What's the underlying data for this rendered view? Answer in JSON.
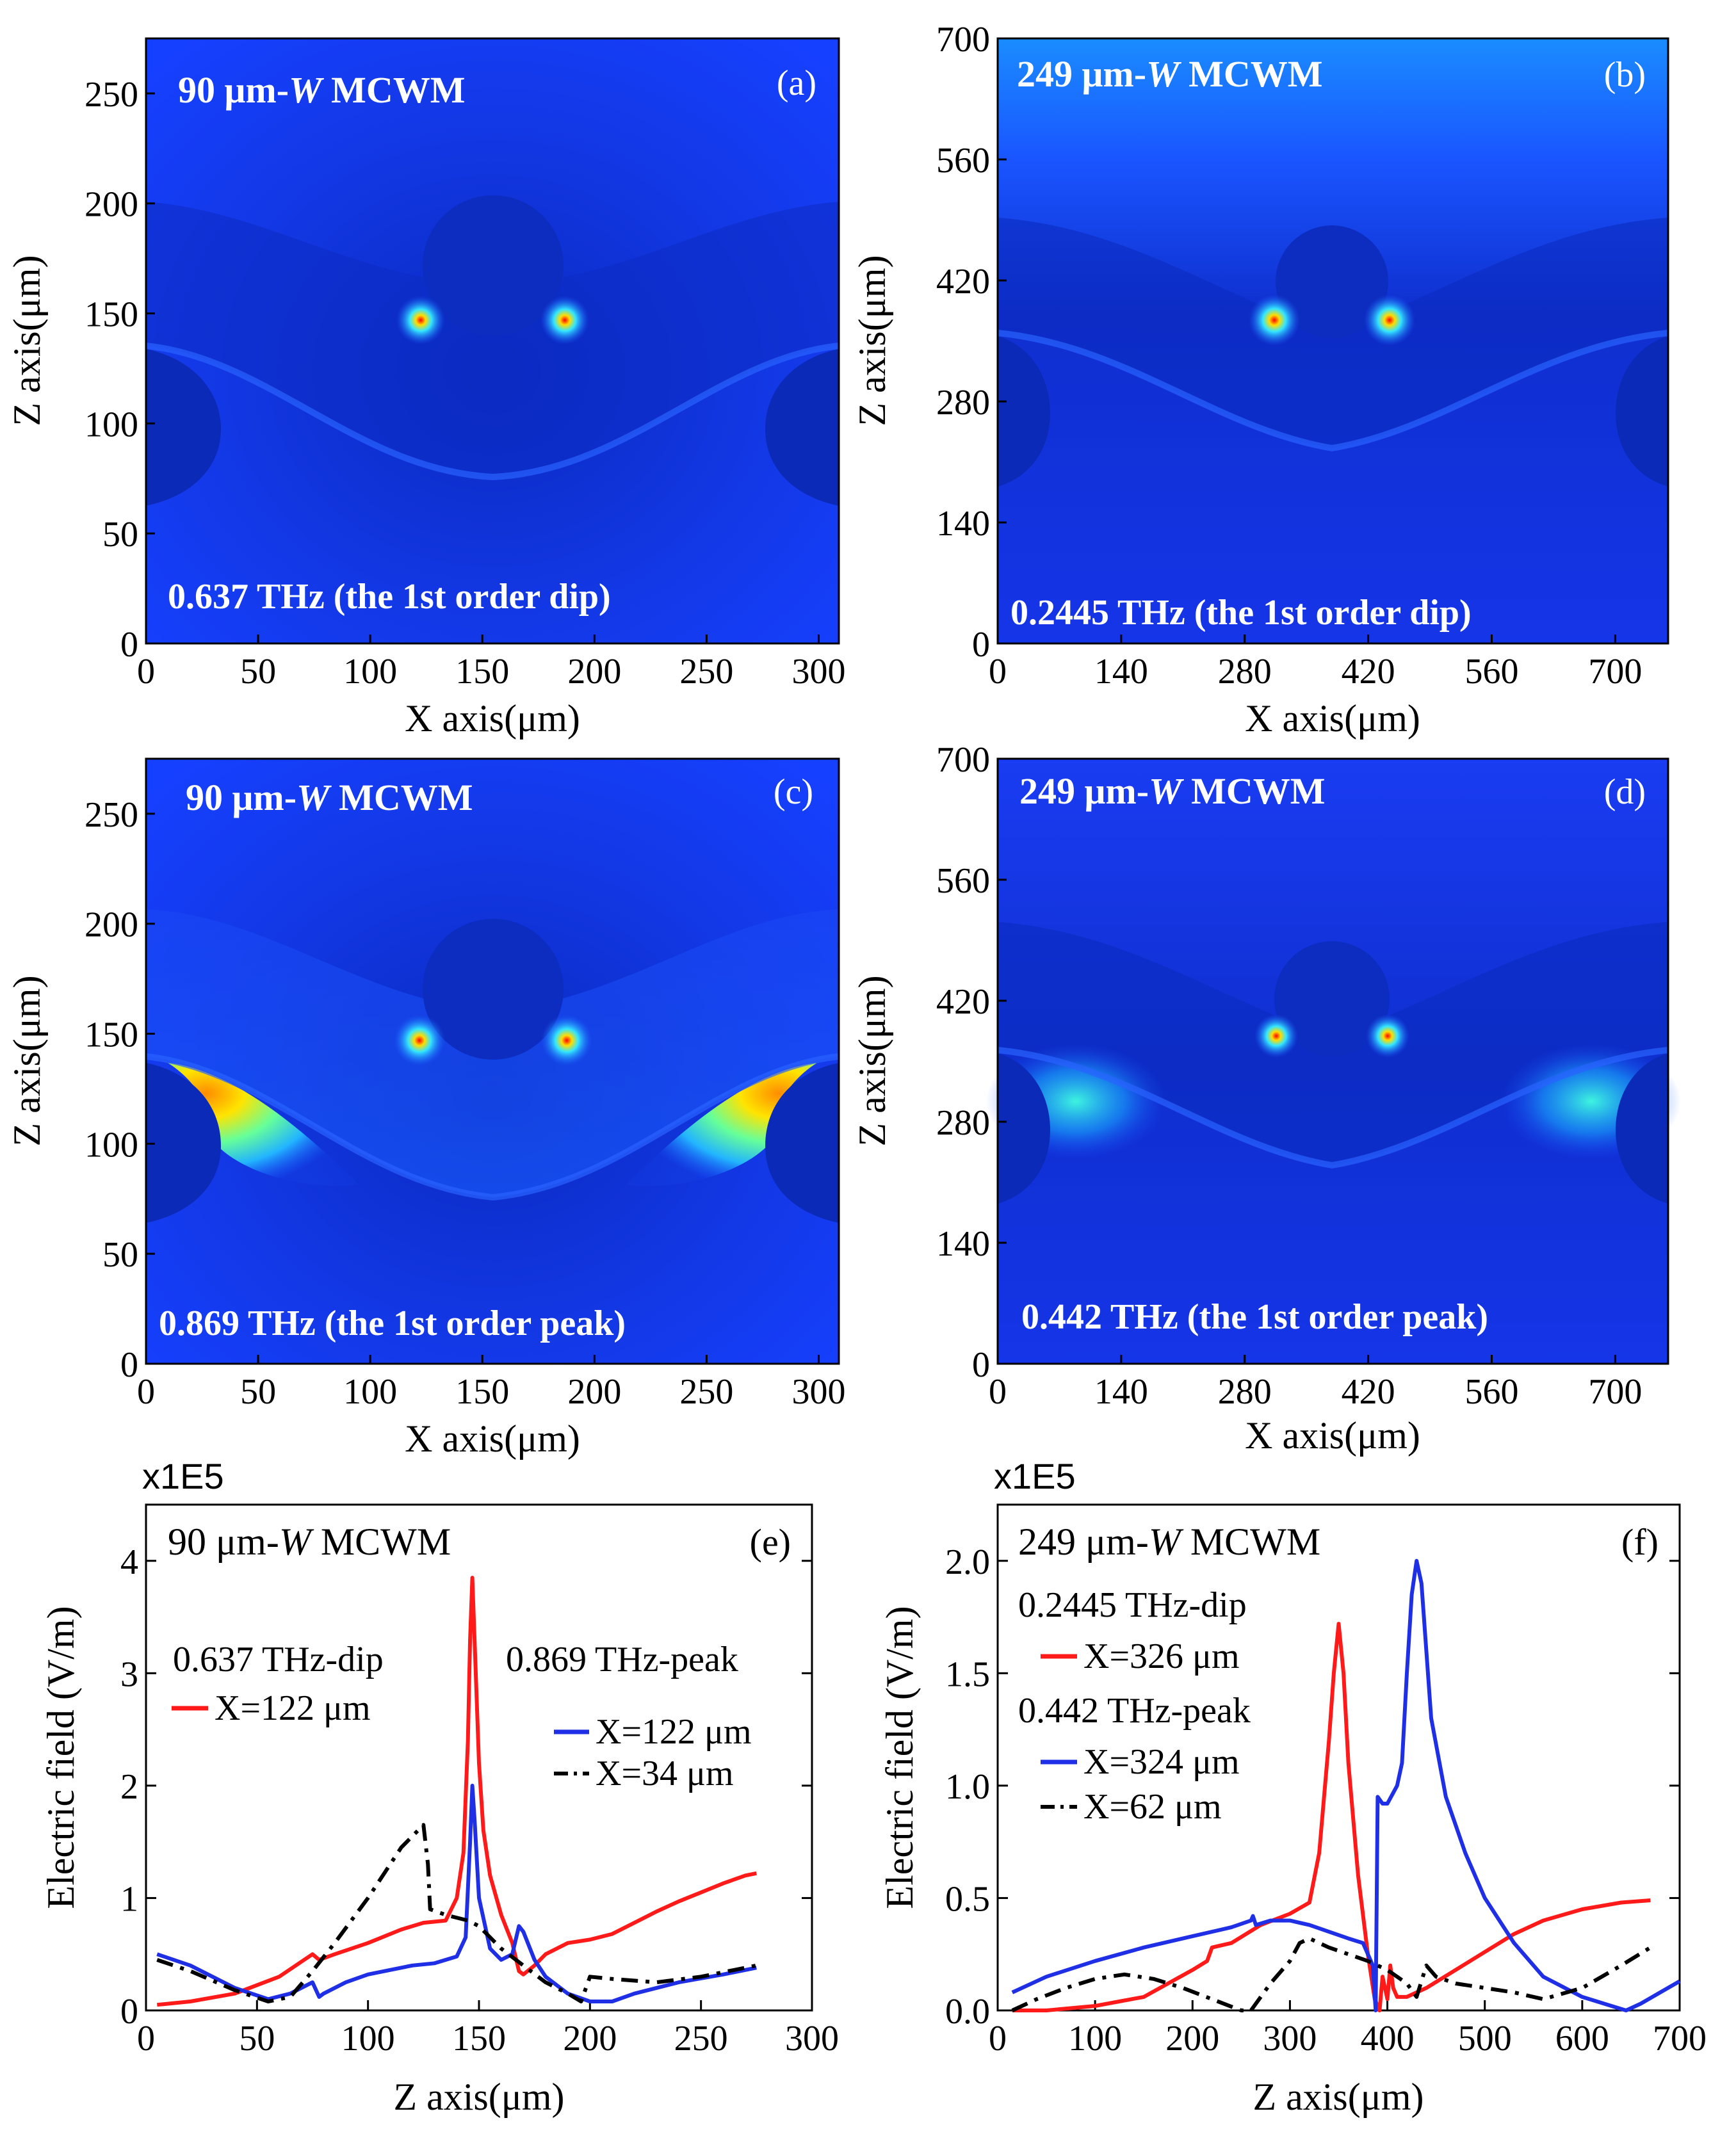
{
  "figure": {
    "multiplier_label": "x1E5",
    "colors": {
      "red": "#ff1a1a",
      "blue": "#1f2fe6",
      "black": "#000000",
      "field_dark": "#0f2fc9",
      "field_bright": "#1640ff"
    }
  },
  "panels": {
    "a": {
      "letter": "(a)",
      "model_prefix": "90 μm-",
      "model_w": "W",
      "model_suffix": " MCWM",
      "freq_label": "0.637 THz (the 1st order dip)",
      "xlabel": "X axis(μm)",
      "ylabel": "Z axis(μm)",
      "xticks": [
        "0",
        "50",
        "100",
        "150",
        "200",
        "250",
        "300"
      ],
      "yticks": [
        "0",
        "50",
        "100",
        "150",
        "200",
        "250"
      ],
      "xrange": [
        0,
        309
      ],
      "yrange": [
        0,
        275
      ]
    },
    "b": {
      "letter": "(b)",
      "model_prefix": "249 μm-",
      "model_w": "W",
      "model_suffix": " MCWM",
      "freq_label": "0.2445 THz (the 1st order dip)",
      "xlabel": "X axis(μm)",
      "ylabel": "Z axis(μm)",
      "xticks": [
        "0",
        "140",
        "280",
        "420",
        "560",
        "700"
      ],
      "yticks": [
        "0",
        "140",
        "280",
        "420",
        "560",
        "700"
      ],
      "xrange": [
        0,
        760
      ],
      "yrange": [
        0,
        700
      ]
    },
    "c": {
      "letter": "(c)",
      "model_prefix": "90 μm-",
      "model_w": "W",
      "model_suffix": " MCWM",
      "freq_label": "0.869 THz (the 1st order peak)",
      "xlabel": "X axis(μm)",
      "ylabel": "Z axis(μm)",
      "xticks": [
        "0",
        "50",
        "100",
        "150",
        "200",
        "250",
        "300"
      ],
      "yticks": [
        "0",
        "50",
        "100",
        "150",
        "200",
        "250"
      ],
      "xrange": [
        0,
        309
      ],
      "yrange": [
        0,
        275
      ]
    },
    "d": {
      "letter": "(d)",
      "model_prefix": "249 μm-",
      "model_w": "W",
      "model_suffix": " MCWM",
      "freq_label": "0.442 THz (the 1st order peak)",
      "xlabel": "X axis(μm)",
      "ylabel": "Z axis(μm)",
      "xticks": [
        "0",
        "140",
        "280",
        "420",
        "560",
        "700"
      ],
      "yticks": [
        "0",
        "140",
        "280",
        "420",
        "560",
        "700"
      ],
      "xrange": [
        0,
        760
      ],
      "yrange": [
        0,
        700
      ]
    }
  },
  "chart_data": [
    {
      "id": "e",
      "type": "line",
      "letter": "(e)",
      "title_prefix": "90 μm-",
      "title_w": "W",
      "title_suffix": " MCWM",
      "xlabel": "Z axis(μm)",
      "ylabel": "Electric field (V/m)",
      "multiplier": "x1E5",
      "xlim": [
        0,
        300
      ],
      "ylim": [
        0,
        4.5
      ],
      "xticks": [
        0,
        50,
        100,
        150,
        200,
        250,
        300
      ],
      "yticks": [
        0,
        1,
        2,
        3,
        4
      ],
      "xtick_labels": [
        "0",
        "50",
        "100",
        "150",
        "200",
        "250",
        "300"
      ],
      "ytick_labels": [
        "0",
        "1",
        "2",
        "3",
        "4"
      ],
      "legend_groups": [
        {
          "header": "0.637 THz-dip",
          "items": [
            "X=122 μm"
          ]
        },
        {
          "header": "0.869 THz-peak",
          "items": [
            "X=122 μm",
            "X=34 μm"
          ]
        }
      ],
      "series": [
        {
          "name": "0.637 THz-dip X=122 μm",
          "color": "red",
          "dash": "solid",
          "x": [
            5,
            20,
            40,
            60,
            75,
            78,
            85,
            100,
            115,
            125,
            135,
            140,
            143,
            145,
            146,
            147,
            148,
            150,
            152,
            155,
            160,
            165,
            168,
            170,
            175,
            180,
            190,
            200,
            210,
            220,
            230,
            240,
            250,
            260,
            270,
            275
          ],
          "y": [
            0.05,
            0.08,
            0.15,
            0.3,
            0.5,
            0.45,
            0.5,
            0.6,
            0.72,
            0.78,
            0.8,
            1.0,
            1.4,
            2.4,
            3.3,
            3.85,
            3.3,
            2.2,
            1.6,
            1.2,
            0.85,
            0.6,
            0.35,
            0.32,
            0.4,
            0.5,
            0.6,
            0.63,
            0.68,
            0.78,
            0.88,
            0.97,
            1.05,
            1.13,
            1.2,
            1.22
          ]
        },
        {
          "name": "0.869 THz-peak X=122 μm",
          "color": "blue",
          "dash": "solid",
          "x": [
            5,
            20,
            40,
            55,
            65,
            75,
            78,
            80,
            90,
            100,
            110,
            120,
            130,
            140,
            144,
            146,
            147,
            148,
            150,
            155,
            160,
            165,
            168,
            170,
            175,
            180,
            190,
            200,
            210,
            220,
            240,
            260,
            275
          ],
          "y": [
            0.5,
            0.4,
            0.2,
            0.1,
            0.15,
            0.25,
            0.12,
            0.15,
            0.25,
            0.32,
            0.36,
            0.4,
            0.42,
            0.48,
            0.65,
            1.5,
            2.0,
            1.7,
            1.0,
            0.55,
            0.45,
            0.5,
            0.75,
            0.7,
            0.45,
            0.3,
            0.15,
            0.08,
            0.08,
            0.15,
            0.25,
            0.32,
            0.38
          ]
        },
        {
          "name": "0.869 THz-peak X=34 μm",
          "color": "black",
          "dash": "dashdot",
          "x": [
            5,
            20,
            40,
            55,
            65,
            75,
            85,
            100,
            115,
            125,
            127,
            128,
            135,
            145,
            150,
            160,
            170,
            180,
            190,
            196,
            200,
            210,
            230,
            250,
            275
          ],
          "y": [
            0.45,
            0.35,
            0.18,
            0.08,
            0.12,
            0.35,
            0.6,
            1.0,
            1.45,
            1.65,
            1.3,
            0.9,
            0.85,
            0.8,
            0.75,
            0.55,
            0.4,
            0.25,
            0.15,
            0.08,
            0.3,
            0.28,
            0.25,
            0.3,
            0.4
          ]
        }
      ]
    },
    {
      "id": "f",
      "type": "line",
      "letter": "(f)",
      "title_prefix": "249 μm-",
      "title_w": "W",
      "title_suffix": " MCWM",
      "xlabel": "Z axis(μm)",
      "ylabel": "Electric field (V/m)",
      "multiplier": "x1E5",
      "xlim": [
        0,
        700
      ],
      "ylim": [
        0,
        2.25
      ],
      "xticks": [
        0,
        100,
        200,
        300,
        400,
        500,
        600,
        700
      ],
      "yticks": [
        0,
        0.5,
        1.0,
        1.5,
        2.0
      ],
      "xtick_labels": [
        "0",
        "100",
        "200",
        "300",
        "400",
        "500",
        "600",
        "700"
      ],
      "ytick_labels": [
        "0.0",
        "0.5",
        "1.0",
        "1.5",
        "2.0"
      ],
      "legend_groups": [
        {
          "header": "0.2445 THz-dip",
          "items": [
            "X=326 μm"
          ]
        },
        {
          "header": "0.442 THz-peak",
          "items": [
            "X=324 μm",
            "X=62 μm"
          ]
        }
      ],
      "series": [
        {
          "name": "0.2445 THz-dip X=326 μm",
          "color": "red",
          "dash": "solid",
          "x": [
            15,
            50,
            100,
            150,
            200,
            215,
            220,
            240,
            270,
            300,
            320,
            330,
            340,
            345,
            350,
            355,
            360,
            370,
            380,
            387,
            392,
            395,
            400,
            403,
            406,
            410,
            420,
            440,
            470,
            500,
            530,
            560,
            600,
            640,
            670
          ],
          "y": [
            0.0,
            0.0,
            0.02,
            0.06,
            0.18,
            0.22,
            0.28,
            0.3,
            0.38,
            0.43,
            0.48,
            0.7,
            1.2,
            1.5,
            1.72,
            1.5,
            1.1,
            0.6,
            0.25,
            0.05,
            0.0,
            0.15,
            0.05,
            0.2,
            0.1,
            0.06,
            0.06,
            0.1,
            0.18,
            0.26,
            0.34,
            0.4,
            0.45,
            0.48,
            0.49
          ]
        },
        {
          "name": "0.442 THz-peak X=324 μm",
          "color": "blue",
          "dash": "solid",
          "x": [
            15,
            50,
            100,
            150,
            200,
            240,
            260,
            262,
            265,
            280,
            300,
            320,
            340,
            360,
            375,
            385,
            388,
            390,
            395,
            400,
            410,
            415,
            420,
            425,
            430,
            435,
            440,
            445,
            460,
            480,
            500,
            530,
            560,
            600,
            630,
            645,
            660,
            680,
            700
          ],
          "y": [
            0.08,
            0.15,
            0.22,
            0.28,
            0.33,
            0.37,
            0.4,
            0.42,
            0.38,
            0.4,
            0.4,
            0.38,
            0.35,
            0.32,
            0.3,
            0.2,
            0.0,
            0.95,
            0.92,
            0.92,
            1.0,
            1.1,
            1.5,
            1.85,
            2.0,
            1.9,
            1.6,
            1.3,
            0.95,
            0.7,
            0.5,
            0.3,
            0.15,
            0.06,
            0.02,
            0.0,
            0.03,
            0.08,
            0.13
          ]
        },
        {
          "name": "0.442 THz-peak X=62 μm",
          "color": "black",
          "dash": "dashdot",
          "x": [
            15,
            40,
            70,
            100,
            130,
            160,
            190,
            220,
            250,
            260,
            280,
            300,
            310,
            320,
            340,
            360,
            380,
            400,
            420,
            430,
            440,
            450,
            470,
            500,
            530,
            560,
            600,
            640,
            670
          ],
          "y": [
            0.0,
            0.05,
            0.1,
            0.14,
            0.16,
            0.14,
            0.1,
            0.05,
            0.0,
            0.0,
            0.12,
            0.22,
            0.3,
            0.32,
            0.28,
            0.25,
            0.22,
            0.18,
            0.12,
            0.06,
            0.2,
            0.15,
            0.12,
            0.1,
            0.08,
            0.05,
            0.1,
            0.2,
            0.28
          ]
        }
      ]
    }
  ]
}
